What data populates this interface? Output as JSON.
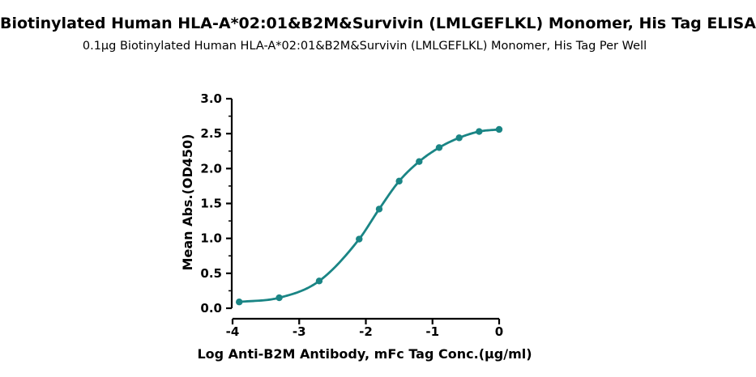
{
  "chart_data": {
    "type": "scatter",
    "title": "Biotinylated Human HLA-A*02:01&B2M&Survivin (LMLGEFLKL) Monomer, His Tag ELISA",
    "subtitle": "0.1μg Biotinylated Human HLA-A*02:01&B2M&Survivin (LMLGEFLKL) Monomer, His Tag Per Well",
    "xlabel": "Log Anti-B2M Antibody, mFc Tag Conc.(μg/ml)",
    "ylabel": "Mean Abs.(OD450)",
    "xlim": [
      -4,
      0
    ],
    "ylim": [
      0,
      3.0
    ],
    "x_ticks": [
      "-4",
      "-3",
      "-2",
      "-1",
      "0"
    ],
    "y_ticks": [
      "0.0",
      "0.5",
      "1.0",
      "1.5",
      "2.0",
      "2.5",
      "3.0"
    ],
    "grid": false,
    "series": [
      {
        "color": "#1a8585",
        "x": [
          -3.9,
          -3.3,
          -2.7,
          -2.1,
          -1.8,
          -1.5,
          -1.2,
          -0.9,
          -0.6,
          -0.3,
          0.0
        ],
        "y": [
          0.09,
          0.15,
          0.39,
          0.99,
          1.42,
          1.82,
          2.1,
          2.3,
          2.44,
          2.53,
          2.56
        ],
        "fit_curve": true
      }
    ]
  }
}
